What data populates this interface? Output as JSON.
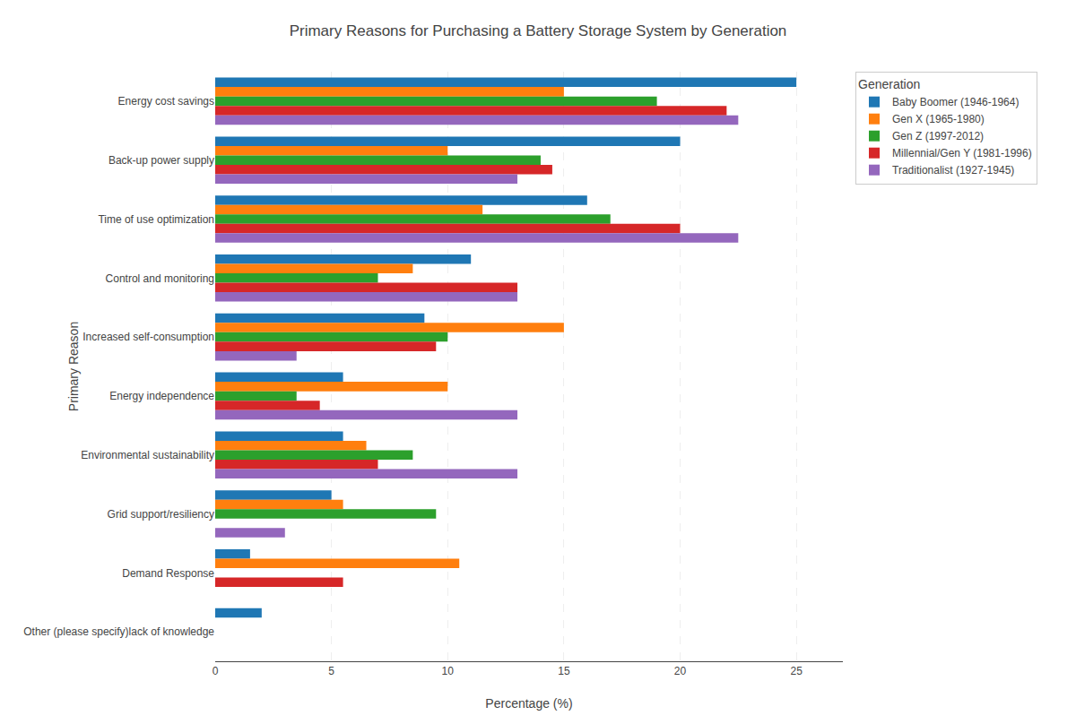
{
  "chart_data": {
    "type": "bar",
    "orientation": "horizontal",
    "title": "Primary Reasons for Purchasing a Battery Storage System by Generation",
    "xlabel": "Percentage (%)",
    "ylabel": "Primary Reason",
    "categories": [
      "Energy cost savings",
      "Back-up power supply",
      "Time of use optimization",
      "Control and monitoring",
      "Increased self-consumption",
      "Energy independence",
      "Environmental sustainability",
      "Grid support/resiliency",
      "Demand Response",
      "Other (please specify)lack of knowledge"
    ],
    "series": [
      {
        "name": "Baby Boomer (1946-1964)",
        "values": [
          25.0,
          20.0,
          16.0,
          11.0,
          9.0,
          5.5,
          5.5,
          5.0,
          1.5,
          2.0
        ]
      },
      {
        "name": "Gen X (1965-1980)",
        "values": [
          15.0,
          10.0,
          11.5,
          8.5,
          15.0,
          10.0,
          6.5,
          5.5,
          10.5,
          0.0
        ]
      },
      {
        "name": "Gen Z (1997-2012)",
        "values": [
          19.0,
          14.0,
          17.0,
          7.0,
          10.0,
          3.5,
          8.5,
          9.5,
          0.0,
          0.0
        ]
      },
      {
        "name": "Millennial/Gen Y (1981-1996)",
        "values": [
          22.0,
          14.5,
          20.0,
          13.0,
          9.5,
          4.5,
          7.0,
          0.0,
          5.5,
          0.0
        ]
      },
      {
        "name": "Traditionalist (1927-1945)",
        "values": [
          22.5,
          13.0,
          22.5,
          13.0,
          3.5,
          13.0,
          13.0,
          3.0,
          0.0,
          0.0
        ]
      }
    ],
    "xlim": [
      0,
      27
    ],
    "xticks": [
      0,
      5,
      10,
      15,
      20,
      25
    ],
    "grid": true,
    "legend": "upper right",
    "legend_title": "Generation"
  }
}
